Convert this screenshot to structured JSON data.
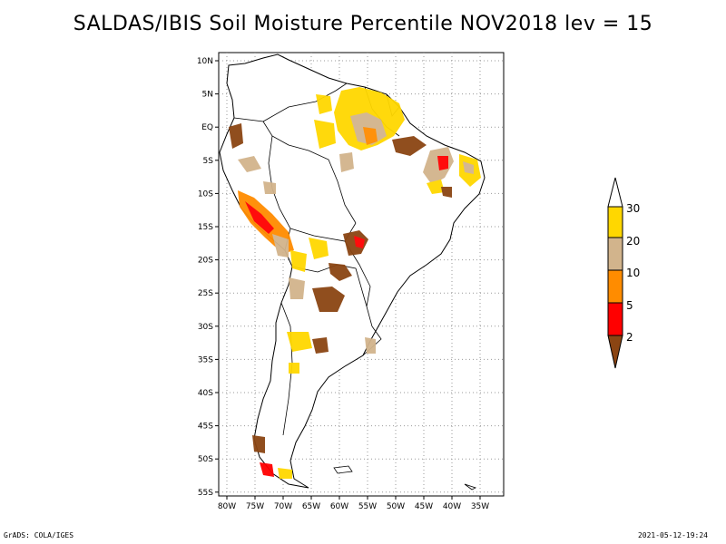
{
  "title": "SALDAS/IBIS Soil Moisture Percentile NOV2018 lev = 15",
  "footer": {
    "left": "GrADS: COLA/IGES",
    "right": "2021-05-12-19:24"
  },
  "map": {
    "region": "South America",
    "lat_ticks": [
      "10N",
      "5N",
      "EQ",
      "5S",
      "10S",
      "15S",
      "20S",
      "25S",
      "30S",
      "35S",
      "40S",
      "45S",
      "50S",
      "55S"
    ],
    "lon_ticks": [
      "80W",
      "75W",
      "70W",
      "65W",
      "60W",
      "55W",
      "50W",
      "45W",
      "40W",
      "35W"
    ],
    "lat_range": [
      -56,
      12
    ],
    "lon_range": [
      -81,
      -32
    ],
    "grid": "dotted"
  },
  "legend": {
    "bins": [
      {
        "label": "2",
        "color": "#8b4513"
      },
      {
        "label": "5",
        "color": "#ff0000"
      },
      {
        "label": "10",
        "color": "#ff8c00"
      },
      {
        "label": "20",
        "color": "#d2b48c"
      },
      {
        "label": "30",
        "color": "#ffd700"
      }
    ],
    "colors": {
      "below_2": "#8b4513",
      "2_5": "#ff0000",
      "5_10": "#ff8c00",
      "10_20": "#d2b48c",
      "20_30": "#ffd700",
      "above_30": "#ffffff"
    }
  }
}
